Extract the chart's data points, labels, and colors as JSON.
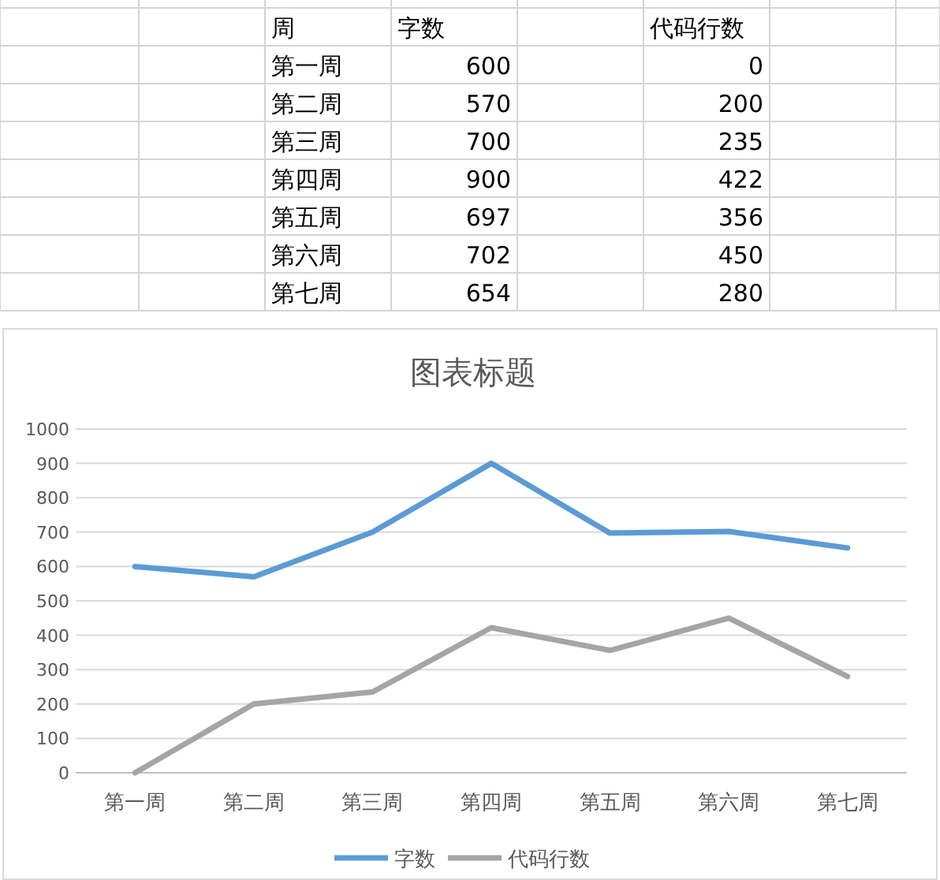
{
  "chart_data": [
    {
      "type": "other",
      "xlabel": "周",
      "categories": [
        "第一周",
        "第二周",
        "第三周",
        "第四周",
        "第五周",
        "第六周",
        "第七周"
      ],
      "series": [
        {
          "name": "字数",
          "values": [
            600,
            570,
            700,
            900,
            697,
            702,
            654
          ]
        },
        {
          "name": "代码行数",
          "values": [
            0,
            200,
            235,
            422,
            356,
            450,
            280
          ]
        }
      ],
      "data_labels": true
    },
    {
      "type": "line",
      "title": "图表标题",
      "categories": [
        "第一周",
        "第二周",
        "第三周",
        "第四周",
        "第五周",
        "第六周",
        "第七周"
      ],
      "series": [
        {
          "name": "字数",
          "color": "#5b9bd5",
          "values": [
            600,
            570,
            700,
            900,
            697,
            702,
            654
          ]
        },
        {
          "name": "代码行数",
          "color": "#a5a5a5",
          "values": [
            0,
            200,
            235,
            422,
            356,
            450,
            280
          ]
        }
      ],
      "ylim": [
        0,
        1000
      ],
      "yticks": [
        0,
        100,
        200,
        300,
        400,
        500,
        600,
        700,
        800,
        900,
        1000
      ],
      "grid": "y",
      "legend": "bottom",
      "marker": "none",
      "line_style": "solid"
    }
  ]
}
